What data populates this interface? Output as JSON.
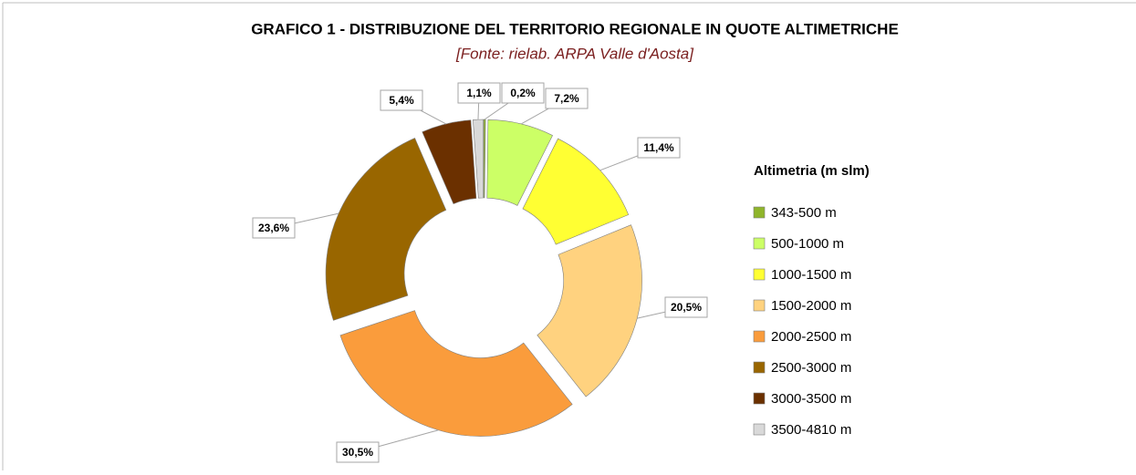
{
  "chart_data": {
    "type": "donut",
    "title": "GRAFICO 1 - DISTRIBUZIONE DEL TERRITORIO REGIONALE IN QUOTE ALTIMETRICHE",
    "subtitle": "[Fonte: rielab. ARPA Valle d'Aosta]",
    "legend_title": "Altimetria (m slm)",
    "categories": [
      "343-500 m",
      "500-1000 m",
      "1000-1500 m",
      "1500-2000 m",
      "2000-2500 m",
      "2500-3000 m",
      "3000-3500 m",
      "3500-4810 m"
    ],
    "values": [
      0.2,
      7.2,
      11.4,
      20.5,
      30.5,
      23.6,
      5.4,
      1.1
    ],
    "value_labels": [
      "0,2%",
      "7,2%",
      "11,4%",
      "20,5%",
      "30,5%",
      "23,6%",
      "5,4%",
      "1,1%"
    ],
    "colors": [
      "#8fb52b",
      "#ccff66",
      "#ffff33",
      "#ffd27f",
      "#fa9c3c",
      "#996600",
      "#6b3000",
      "#d9d9d9"
    ],
    "legend": "right"
  }
}
